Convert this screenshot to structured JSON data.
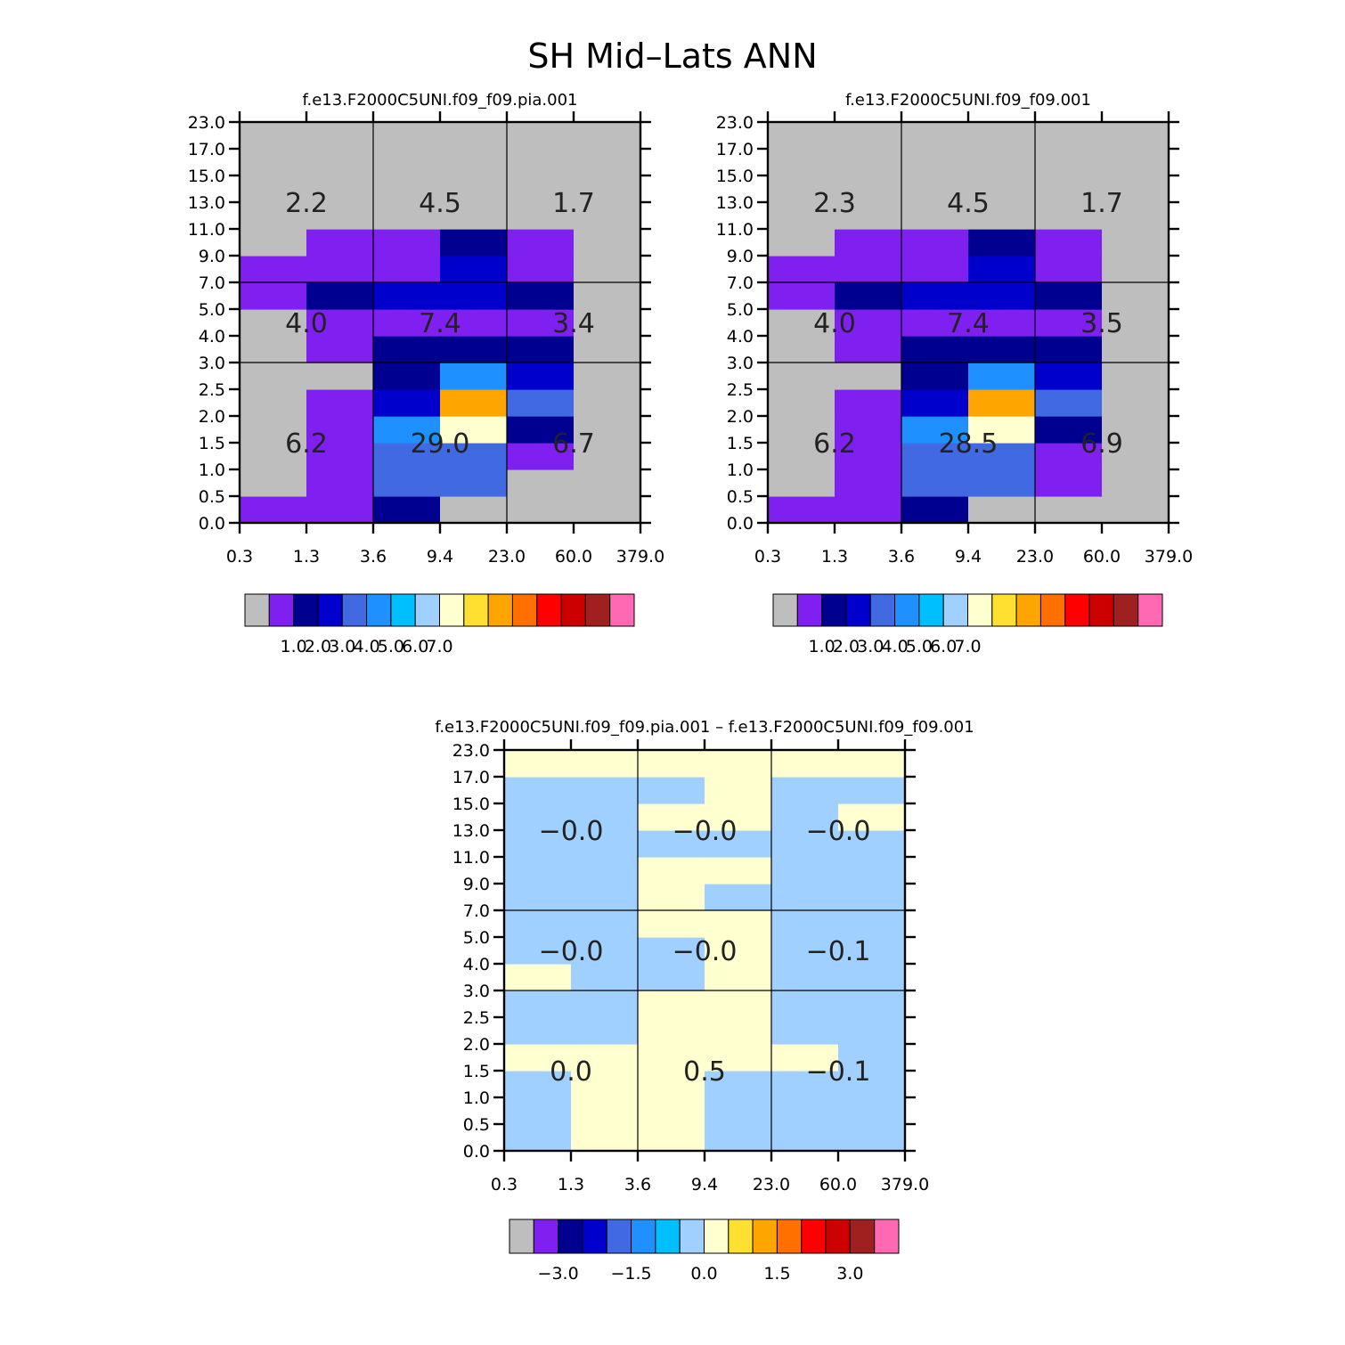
{
  "title": "SH Mid–Lats ANN",
  "chart_data": [
    {
      "type": "heatmap",
      "title": "f.e13.F2000C5UNI.f09_f09.pia.001",
      "x_ticks": [
        "0.3",
        "1.3",
        "3.6",
        "9.4",
        "23.0",
        "60.0",
        "379.0"
      ],
      "y_ticks": [
        "0.0",
        "0.5",
        "1.0",
        "1.5",
        "2.0",
        "2.5",
        "3.0",
        "4.0",
        "5.0",
        "7.0",
        "9.0",
        "11.0",
        "13.0",
        "15.0",
        "17.0",
        "23.0"
      ],
      "cells": [
        [
          14,
          14,
          1,
          0,
          0,
          0
        ],
        [
          14,
          14,
          0,
          0,
          0,
          0
        ],
        [
          14,
          14,
          1,
          0,
          0,
          0
        ],
        [
          14,
          14,
          1,
          1,
          0,
          0
        ],
        [
          14,
          14,
          1,
          2,
          0,
          0
        ],
        [
          14,
          14,
          1,
          1,
          1,
          0
        ],
        [
          14,
          1,
          1,
          1,
          1,
          0
        ],
        [
          14,
          1,
          1,
          0,
          3,
          0
        ],
        [
          1,
          0,
          1,
          10,
          1,
          0
        ],
        [
          1,
          0,
          6,
          9,
          3,
          14
        ],
        [
          14,
          0,
          3,
          3,
          14,
          14
        ],
        [
          14,
          14,
          1,
          3,
          14,
          0
        ],
        [
          14,
          14,
          3,
          3,
          14,
          14
        ],
        [
          14,
          14,
          5,
          1,
          14,
          14
        ],
        [
          14,
          14,
          0,
          0,
          14,
          14
        ]
      ],
      "box_values": [
        [
          "2.2",
          "4.5",
          "1.7"
        ],
        [
          "4.0",
          "7.4",
          "3.4"
        ],
        [
          "6.2",
          "29.0",
          "6.7"
        ]
      ],
      "colorbar_labels": [
        "1.0",
        "2.0",
        "3.0",
        "4.0",
        "5.0",
        "6.0",
        "7.0"
      ]
    },
    {
      "type": "heatmap",
      "title": "f.e13.F2000C5UNI.f09_f09.001",
      "x_ticks": [
        "0.3",
        "1.3",
        "3.6",
        "9.4",
        "23.0",
        "60.0",
        "379.0"
      ],
      "y_ticks": [
        "0.0",
        "0.5",
        "1.0",
        "1.5",
        "2.0",
        "2.5",
        "3.0",
        "4.0",
        "5.0",
        "7.0",
        "9.0",
        "11.0",
        "13.0",
        "15.0",
        "17.0",
        "23.0"
      ],
      "cells": [
        [
          14,
          14,
          1,
          0,
          0,
          0
        ],
        [
          14,
          14,
          0,
          0,
          0,
          0
        ],
        [
          14,
          14,
          1,
          0,
          0,
          0
        ],
        [
          14,
          14,
          1,
          1,
          0,
          0
        ],
        [
          14,
          14,
          1,
          2,
          0,
          0
        ],
        [
          14,
          14,
          1,
          1,
          1,
          0
        ],
        [
          14,
          1,
          1,
          1,
          1,
          0
        ],
        [
          14,
          1,
          1,
          0,
          3,
          0
        ],
        [
          1,
          0,
          1,
          10,
          1,
          0
        ],
        [
          1,
          0,
          6,
          9,
          3,
          14
        ],
        [
          14,
          0,
          3,
          3,
          14,
          14
        ],
        [
          14,
          14,
          1,
          3,
          14,
          0
        ],
        [
          14,
          14,
          3,
          3,
          14,
          14
        ],
        [
          14,
          14,
          5,
          1,
          14,
          14
        ],
        [
          14,
          14,
          0,
          0,
          14,
          14
        ]
      ],
      "box_values": [
        [
          "2.3",
          "4.5",
          "1.7"
        ],
        [
          "4.0",
          "7.4",
          "3.5"
        ],
        [
          "6.2",
          "28.5",
          "6.9"
        ]
      ],
      "colorbar_labels": [
        "1.0",
        "2.0",
        "3.0",
        "4.0",
        "5.0",
        "6.0",
        "7.0"
      ]
    },
    {
      "type": "heatmap",
      "title": "f.e13.F2000C5UNI.f09_f09.pia.001  –  f.e13.F2000C5UNI.f09_f09.001",
      "x_ticks": [
        "0.3",
        "1.3",
        "3.6",
        "9.4",
        "23.0",
        "60.0",
        "379.0"
      ],
      "y_ticks": [
        "0.0",
        "0.5",
        "1.0",
        "1.5",
        "2.0",
        "2.5",
        "3.0",
        "4.0",
        "5.0",
        "7.0",
        "9.0",
        "11.0",
        "13.0",
        "15.0",
        "17.0",
        "23.0"
      ],
      "cells": [
        [
          6,
          6,
          7,
          7,
          6,
          6
        ],
        [
          6,
          6,
          7,
          7,
          6,
          6
        ],
        [
          6,
          6,
          7,
          7,
          6,
          6
        ],
        [
          6,
          6,
          7,
          7,
          6,
          6
        ],
        [
          6,
          6,
          7,
          7,
          6,
          6
        ],
        [
          6,
          6,
          7,
          7,
          6,
          6
        ],
        [
          6,
          6,
          7,
          7,
          6,
          6
        ],
        [
          6,
          6,
          7,
          7,
          6,
          6
        ],
        [
          6,
          6,
          7,
          7,
          6,
          6
        ],
        [
          6,
          6,
          7,
          7,
          6,
          6
        ],
        [
          6,
          6,
          7,
          7,
          6,
          6
        ],
        [
          6,
          6,
          7,
          7,
          6,
          6
        ],
        [
          6,
          6,
          7,
          7,
          6,
          6
        ],
        [
          6,
          6,
          7,
          7,
          6,
          6
        ],
        [
          6,
          6,
          7,
          7,
          6,
          6
        ]
      ],
      "box_values": [
        [
          "−0.0",
          "−0.0",
          "−0.0"
        ],
        [
          "−0.0",
          "−0.0",
          "−0.1"
        ],
        [
          "0.0",
          "0.5",
          "−0.1"
        ]
      ],
      "colorbar_labels": [
        "−3.0",
        "−1.5",
        "0.0",
        "1.5",
        "3.0"
      ]
    }
  ],
  "colors": {
    "palette": [
      "#bebebe",
      "#8020f0",
      "#000090",
      "#0000cd",
      "#4169e1",
      "#1e90ff",
      "#00bfff",
      "#a0d0ff",
      "#ffffd0",
      "#ffe030",
      "#ffa500",
      "#ff7000",
      "#ff0000",
      "#cd0000",
      "#a02020",
      "#ff69b4"
    ]
  }
}
